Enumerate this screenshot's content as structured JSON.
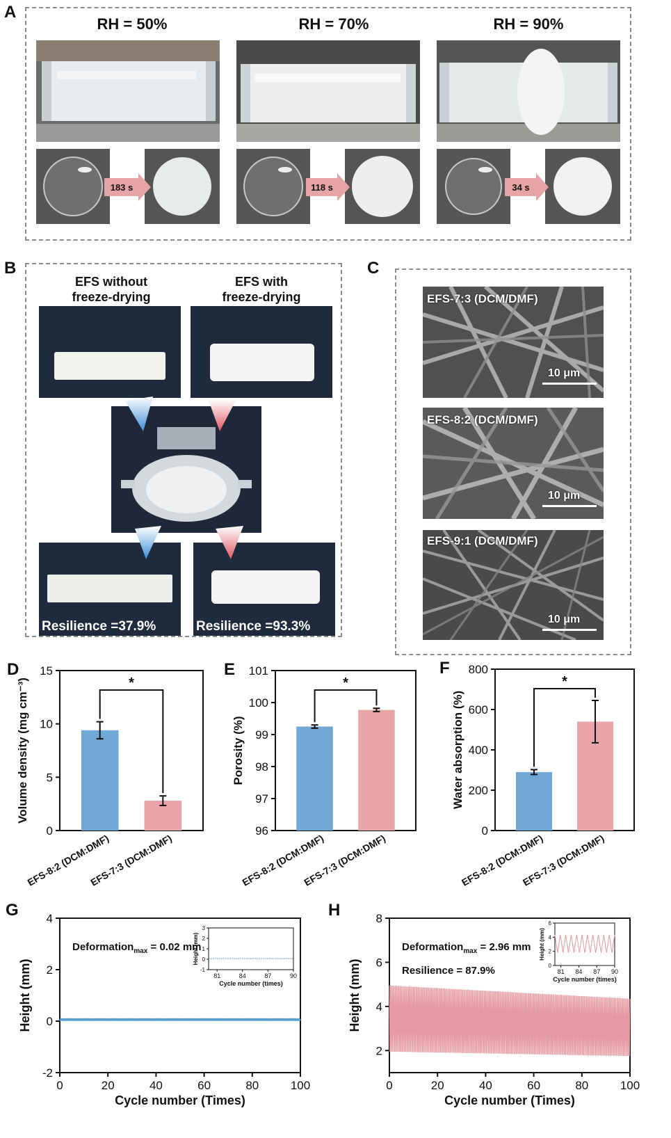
{
  "panels": {
    "A": {
      "letter": "A",
      "rh_labels": [
        "RH = 50%",
        "RH = 70%",
        "RH = 90%"
      ],
      "times": [
        "183 s",
        "118 s",
        "34 s"
      ]
    },
    "B": {
      "letter": "B",
      "title_left_1": "EFS without",
      "title_left_2": "freeze-drying",
      "title_right_1": "EFS with",
      "title_right_2": "freeze-drying",
      "resilience_left": "Resilience =37.9%",
      "resilience_right": "Resilience =93.3%"
    },
    "C": {
      "letter": "C",
      "sem_labels": [
        "EFS-7:3 (DCM/DMF)",
        "EFS-8:2 (DCM/DMF)",
        "EFS-9:1 (DCM/DMF)"
      ],
      "scale": "10 μm"
    }
  },
  "colors": {
    "blue": "#6fa8d4",
    "pink": "#e8a5a8",
    "blue_line": "#5b9fd0",
    "pink_line": "#e49aa0"
  },
  "chart_data": [
    {
      "id": "D",
      "letter": "D",
      "type": "bar",
      "categories": [
        "EFS-8:2 (DCM:DMF)",
        "EFS-7:3 (DCM:DMF)"
      ],
      "values": [
        9.4,
        2.8
      ],
      "errors": [
        0.8,
        0.45
      ],
      "ylabel": "Volume density (mg cm⁻³)",
      "ylim": [
        0,
        15
      ],
      "yticks": [
        0,
        5,
        10,
        15
      ],
      "significance": "*"
    },
    {
      "id": "E",
      "letter": "E",
      "type": "bar",
      "categories": [
        "EFS-8:2 (DCM:DMF)",
        "EFS-7:3 (DCM:DMF)"
      ],
      "values": [
        99.25,
        99.77
      ],
      "errors": [
        0.05,
        0.05
      ],
      "ylabel": "Porosity (%)",
      "ylim": [
        96,
        101
      ],
      "yticks": [
        96,
        97,
        98,
        99,
        100,
        101
      ],
      "significance": "*"
    },
    {
      "id": "F",
      "letter": "F",
      "type": "bar",
      "categories": [
        "EFS-8:2 (DCM:DMF)",
        "EFS-7:3 (DCM:DMF)"
      ],
      "values": [
        290,
        540
      ],
      "errors": [
        12,
        105
      ],
      "ylabel": "Water absorption (%)",
      "ylim": [
        0,
        800
      ],
      "yticks": [
        0,
        200,
        400,
        600,
        800
      ],
      "significance": "*"
    },
    {
      "id": "G",
      "letter": "G",
      "type": "line",
      "xlabel": "Cycle number (Times)",
      "ylabel": "Height (mm)",
      "xlim": [
        0,
        100
      ],
      "ylim": [
        -2,
        4
      ],
      "xticks": [
        0,
        20,
        40,
        60,
        80,
        100
      ],
      "yticks": [
        -2,
        0,
        2,
        4
      ],
      "annotation": "Deformation",
      "annotation_sub": "max",
      "annotation_value": " = 0.02 mm",
      "series": [
        {
          "low": 0.05,
          "high": 0.07
        }
      ],
      "inset": {
        "xlabel": "Cycle number (times)",
        "ylabel": "Height (mm)",
        "xlim": [
          80,
          90
        ],
        "ylim": [
          -1,
          3
        ],
        "xticks": [
          81,
          84,
          87,
          90
        ],
        "yticks": [
          -1,
          0,
          1,
          2,
          3
        ],
        "low": 0.05,
        "high": 0.07
      }
    },
    {
      "id": "H",
      "letter": "H",
      "type": "line",
      "xlabel": "Cycle number (Times)",
      "ylabel": "Height (mm)",
      "xlim": [
        0,
        100
      ],
      "ylim": [
        1,
        8
      ],
      "xticks": [
        0,
        20,
        40,
        60,
        80,
        100
      ],
      "yticks": [
        2,
        4,
        6,
        8
      ],
      "annotation": "Deformation",
      "annotation_sub": "max",
      "annotation_value": " = 2.96 mm",
      "annotation2": "Resilience = 87.9%",
      "series": [
        {
          "low_start": 1.95,
          "low_end": 1.75,
          "high_start": 4.95,
          "high_end": 4.35
        }
      ],
      "inset": {
        "xlabel": "Cycle number (times)",
        "ylabel": "Height (mm)",
        "xlim": [
          80,
          90
        ],
        "ylim": [
          0,
          6
        ],
        "xticks": [
          81,
          84,
          87,
          90
        ],
        "yticks": [
          0,
          2,
          4,
          6
        ],
        "low": 1.8,
        "high": 4.35
      }
    }
  ]
}
